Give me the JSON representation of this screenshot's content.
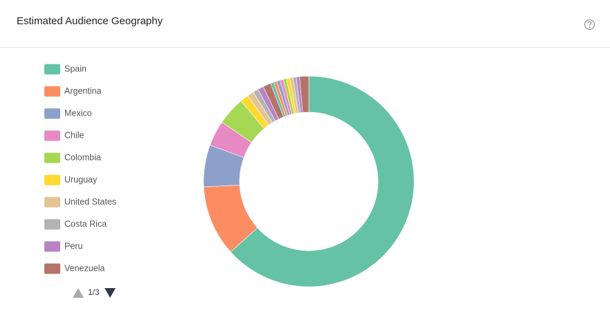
{
  "chart_data": {
    "type": "donut",
    "title": "Estimated Audience Geography",
    "categories": [
      "Spain",
      "Argentina",
      "Mexico",
      "Chile",
      "Colombia",
      "Uruguay",
      "United States",
      "Costa Rica",
      "Peru",
      "Venezuela",
      null,
      null,
      null,
      null,
      null,
      null,
      null,
      null,
      null,
      null
    ],
    "values": [
      63,
      10.8,
      6.4,
      3.9,
      4.3,
      1.3,
      1,
      0.8,
      0.9,
      1.2,
      0.5,
      0.5,
      0.5,
      0.5,
      0.5,
      0.5,
      0.5,
      0.5,
      0.5,
      1.4
    ],
    "colors": [
      "#66c2a5",
      "#fc8d62",
      "#8da0cb",
      "#e78ac3",
      "#a6d854",
      "#ffd92f",
      "#e5c494",
      "#b3b3b3",
      "#b784c4",
      "#b5736a",
      "#66c2a5",
      "#fc8d62",
      "#8da0cb",
      "#e78ac3",
      "#a6d854",
      "#ffd92f",
      "#e5c494",
      "#b3b3b3",
      "#b784c4",
      "#b5736a"
    ],
    "legend_page": "1/3"
  }
}
